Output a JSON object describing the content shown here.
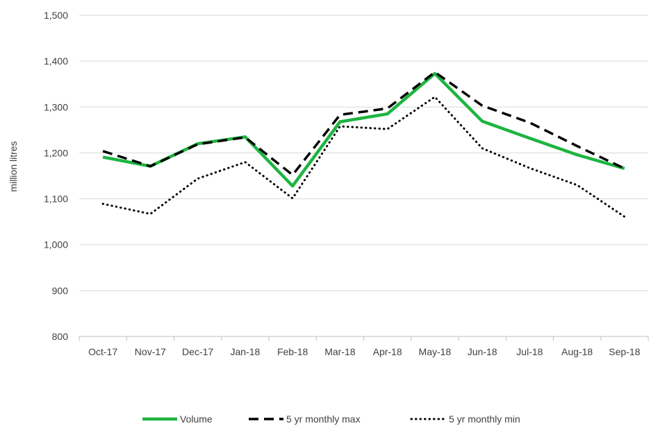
{
  "chart_data": {
    "type": "line",
    "title": "",
    "xlabel": "",
    "ylabel": "million litres",
    "ylim": [
      800,
      1500
    ],
    "yticks": [
      800,
      900,
      1000,
      1100,
      1200,
      1300,
      1400,
      1500
    ],
    "ytick_labels": [
      "800",
      "900",
      "1,000",
      "1,100",
      "1,200",
      "1,300",
      "1,400",
      "1,500"
    ],
    "grid": "horizontal",
    "legend_position": "bottom",
    "categories": [
      "Oct-17",
      "Nov-17",
      "Dec-17",
      "Jan-18",
      "Feb-18",
      "Mar-18",
      "Apr-18",
      "May-18",
      "Jun-18",
      "Jul-18",
      "Aug-18",
      "Sep-18"
    ],
    "series": [
      {
        "name": "Volume",
        "style": "solid",
        "color": "#1db440",
        "values": [
          1191,
          1171,
          1220,
          1235,
          1128,
          1268,
          1285,
          1373,
          1269,
          1232,
          1196,
          1166
        ]
      },
      {
        "name": "5 yr monthly max",
        "style": "dashed",
        "color": "#000000",
        "values": [
          1204,
          1171,
          1219,
          1234,
          1152,
          1283,
          1297,
          1376,
          1303,
          1266,
          1215,
          1166
        ]
      },
      {
        "name": "5 yr monthly min",
        "style": "dotted",
        "color": "#000000",
        "values": [
          1089,
          1067,
          1144,
          1180,
          1101,
          1258,
          1252,
          1322,
          1210,
          1167,
          1130,
          1061
        ]
      }
    ]
  }
}
